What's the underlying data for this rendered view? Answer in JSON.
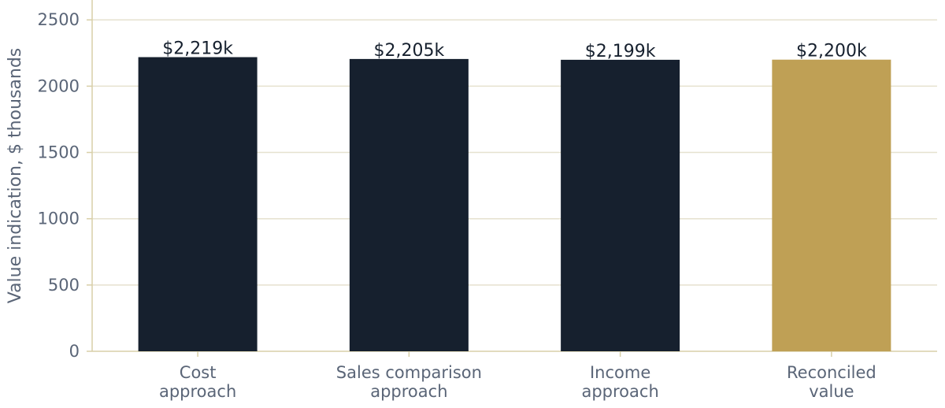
{
  "chart_data": {
    "type": "bar",
    "categories": [
      [
        "Cost",
        "approach"
      ],
      [
        "Sales comparison",
        "approach"
      ],
      [
        "Income",
        "approach"
      ],
      [
        "Reconciled",
        "value"
      ]
    ],
    "values": [
      2219,
      2205,
      2199,
      2200
    ],
    "data_labels": [
      "$2,219k",
      "$2,205k",
      "$2,199k",
      "$2,200k"
    ],
    "ylabel": "Value indication, $ thousands",
    "xlabel": "",
    "title": "",
    "ylim": [
      0,
      2650
    ],
    "yticks": [
      0,
      500,
      1000,
      1500,
      2000,
      2500
    ],
    "grid": true,
    "colors": {
      "bar": "#16202e",
      "highlight": "#bfa055",
      "grid": "#e6e1cf",
      "axis": "#d8cfa8",
      "text": "#5a6577"
    },
    "highlight_index": 3
  }
}
